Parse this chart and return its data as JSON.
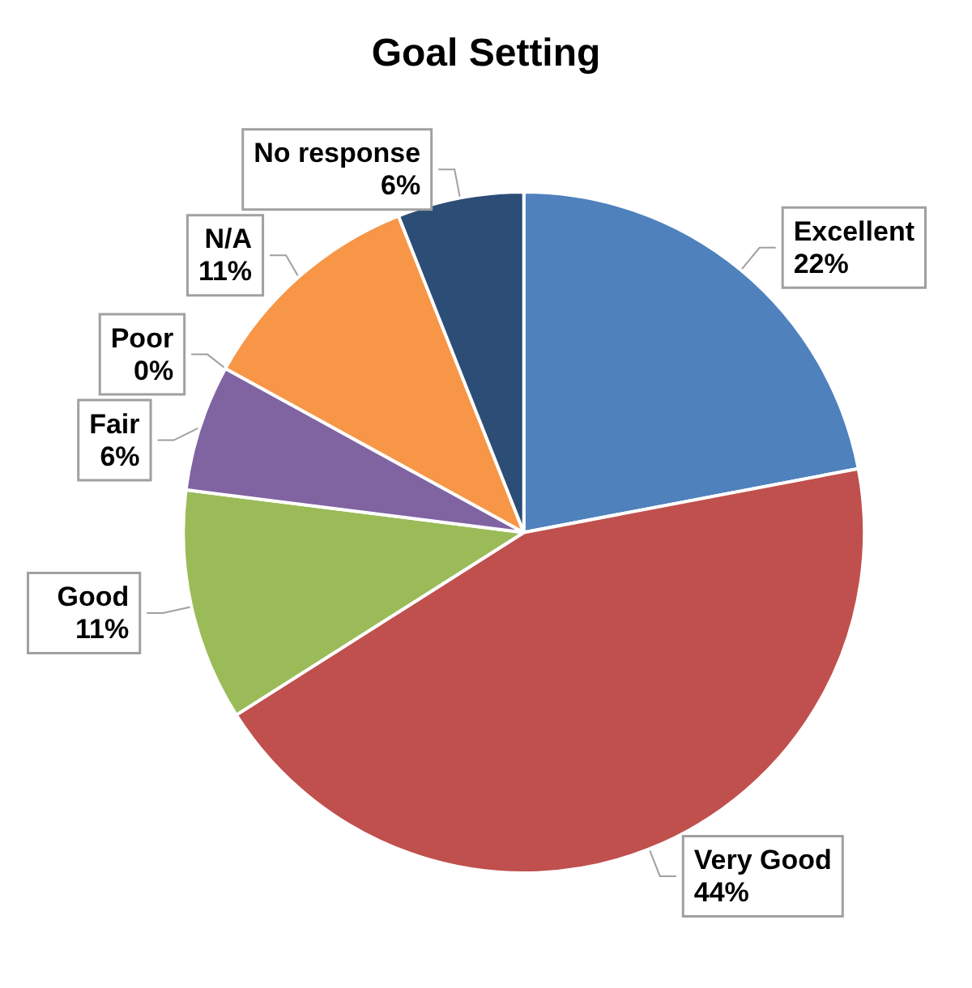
{
  "chart_data": {
    "type": "pie",
    "title": "Goal Setting",
    "categories": [
      "Excellent",
      "Very Good",
      "Good",
      "Fair",
      "Poor",
      "N/A",
      "No response"
    ],
    "values": [
      22,
      44,
      11,
      6,
      0,
      11,
      6
    ],
    "colors": [
      "#4f81bd",
      "#c0504d",
      "#9bbb59",
      "#8064a2",
      "#4bacc6",
      "#f79646",
      "#2c4d75"
    ],
    "value_labels": [
      "22%",
      "44%",
      "11%",
      "6%",
      "0%",
      "11%",
      "6%"
    ],
    "legend": false
  }
}
